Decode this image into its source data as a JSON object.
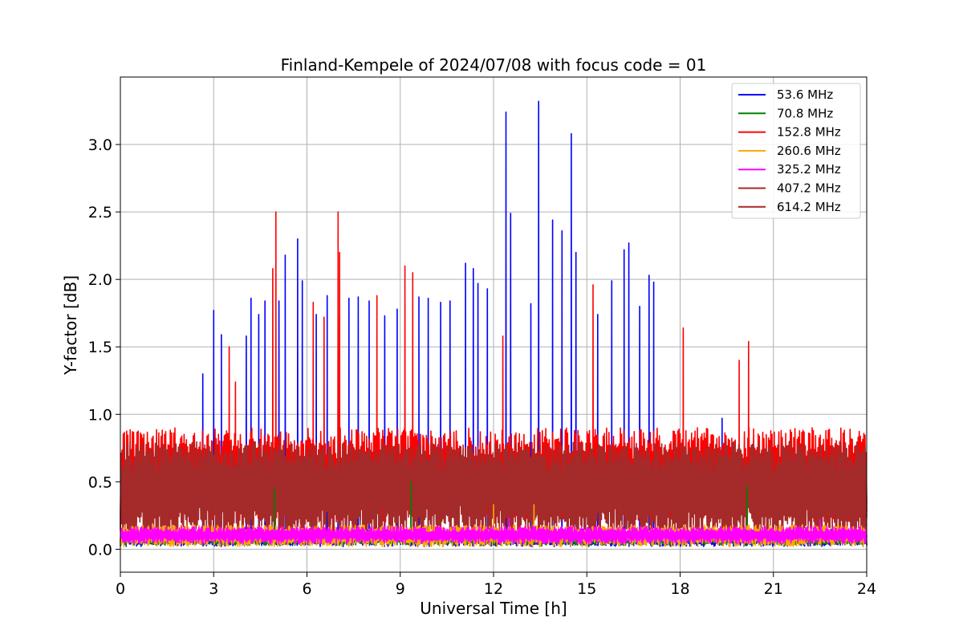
{
  "chart_data": {
    "type": "line",
    "title": "Finland-Kempele of 2024/07/08 with focus code = 01",
    "xlabel": "Universal Time [h]",
    "ylabel": "Y-factor [dB]",
    "xlim": [
      0,
      24
    ],
    "ylim": [
      -0.17,
      3.5
    ],
    "x_ticks": [
      0,
      3,
      6,
      9,
      12,
      15,
      18,
      21,
      24
    ],
    "x_tick_labels": [
      "0",
      "3",
      "6",
      "9",
      "12",
      "15",
      "18",
      "21",
      "24"
    ],
    "y_ticks": [
      0.0,
      0.5,
      1.0,
      1.5,
      2.0,
      2.5,
      3.0
    ],
    "y_tick_labels": [
      "0.0",
      "0.5",
      "1.0",
      "1.5",
      "2.0",
      "2.5",
      "3.0"
    ],
    "grid": true,
    "legend_position": "top-right",
    "series": [
      {
        "name": "53.6 MHz",
        "legend_label": "  53.6 MHz",
        "color": "#0000ff",
        "baseline": [
          0.02,
          0.15
        ],
        "spikes": [
          [
            2.65,
            1.3
          ],
          [
            3.0,
            1.77
          ],
          [
            3.25,
            1.59
          ],
          [
            4.05,
            1.58
          ],
          [
            4.2,
            1.86
          ],
          [
            4.45,
            1.74
          ],
          [
            4.65,
            1.84
          ],
          [
            5.1,
            1.84
          ],
          [
            5.3,
            2.18
          ],
          [
            5.7,
            2.3
          ],
          [
            5.85,
            1.99
          ],
          [
            6.3,
            1.74
          ],
          [
            6.65,
            1.88
          ],
          [
            7.0,
            1.73
          ],
          [
            7.35,
            1.86
          ],
          [
            7.65,
            1.87
          ],
          [
            8.0,
            1.84
          ],
          [
            8.5,
            1.73
          ],
          [
            8.9,
            1.78
          ],
          [
            9.6,
            1.87
          ],
          [
            9.9,
            1.86
          ],
          [
            10.3,
            1.83
          ],
          [
            10.6,
            1.84
          ],
          [
            11.1,
            2.12
          ],
          [
            11.35,
            2.08
          ],
          [
            11.5,
            1.97
          ],
          [
            11.8,
            1.93
          ],
          [
            12.4,
            3.24
          ],
          [
            12.55,
            2.49
          ],
          [
            13.2,
            1.82
          ],
          [
            13.45,
            3.32
          ],
          [
            13.9,
            2.44
          ],
          [
            14.2,
            2.36
          ],
          [
            14.5,
            3.08
          ],
          [
            14.65,
            2.2
          ],
          [
            15.35,
            1.74
          ],
          [
            15.8,
            1.99
          ],
          [
            16.2,
            2.22
          ],
          [
            16.35,
            2.27
          ],
          [
            16.7,
            1.8
          ],
          [
            17.0,
            2.03
          ],
          [
            17.15,
            1.98
          ],
          [
            19.35,
            0.97
          ]
        ]
      },
      {
        "name": "70.8 MHz",
        "legend_label": "  70.8 MHz",
        "color": "#008000",
        "baseline": [
          0.03,
          0.12
        ],
        "spikes": [
          [
            4.95,
            0.45
          ],
          [
            9.35,
            0.5
          ],
          [
            20.15,
            0.47
          ]
        ]
      },
      {
        "name": "152.8 MHz",
        "legend_label": "152.8 MHz",
        "color": "#ff0000",
        "baseline": [
          0.2,
          0.9
        ],
        "spikes": [
          [
            3.5,
            1.5
          ],
          [
            3.7,
            1.24
          ],
          [
            4.9,
            2.08
          ],
          [
            5.0,
            2.5
          ],
          [
            6.2,
            1.83
          ],
          [
            6.55,
            1.72
          ],
          [
            7.0,
            2.5
          ],
          [
            7.05,
            2.2
          ],
          [
            8.25,
            1.88
          ],
          [
            9.15,
            2.1
          ],
          [
            9.4,
            2.05
          ],
          [
            12.3,
            1.58
          ],
          [
            15.2,
            1.96
          ],
          [
            18.1,
            1.64
          ],
          [
            19.9,
            1.4
          ],
          [
            20.2,
            1.54
          ]
        ]
      },
      {
        "name": "260.6 MHz",
        "legend_label": "260.6 MHz",
        "color": "#ffa500",
        "baseline": [
          0.02,
          0.18
        ],
        "spikes": [
          [
            12.0,
            0.33
          ],
          [
            13.3,
            0.33
          ]
        ]
      },
      {
        "name": "325.2 MHz",
        "legend_label": "325.2 MHz",
        "color": "#ff00ff",
        "baseline": [
          0.04,
          0.17
        ],
        "spikes": [
          [
            12.5,
            0.23
          ],
          [
            22.5,
            0.22
          ]
        ]
      },
      {
        "name": "407.2 MHz",
        "legend_label": "407.2 MHz",
        "color": "#a52a2a",
        "baseline": [
          0.1,
          0.8
        ],
        "spikes": []
      },
      {
        "name": "614.2 MHz",
        "legend_label": "614.2 MHz",
        "color": "#a52a2a",
        "baseline": [
          0.08,
          0.78
        ],
        "spikes": []
      }
    ]
  }
}
